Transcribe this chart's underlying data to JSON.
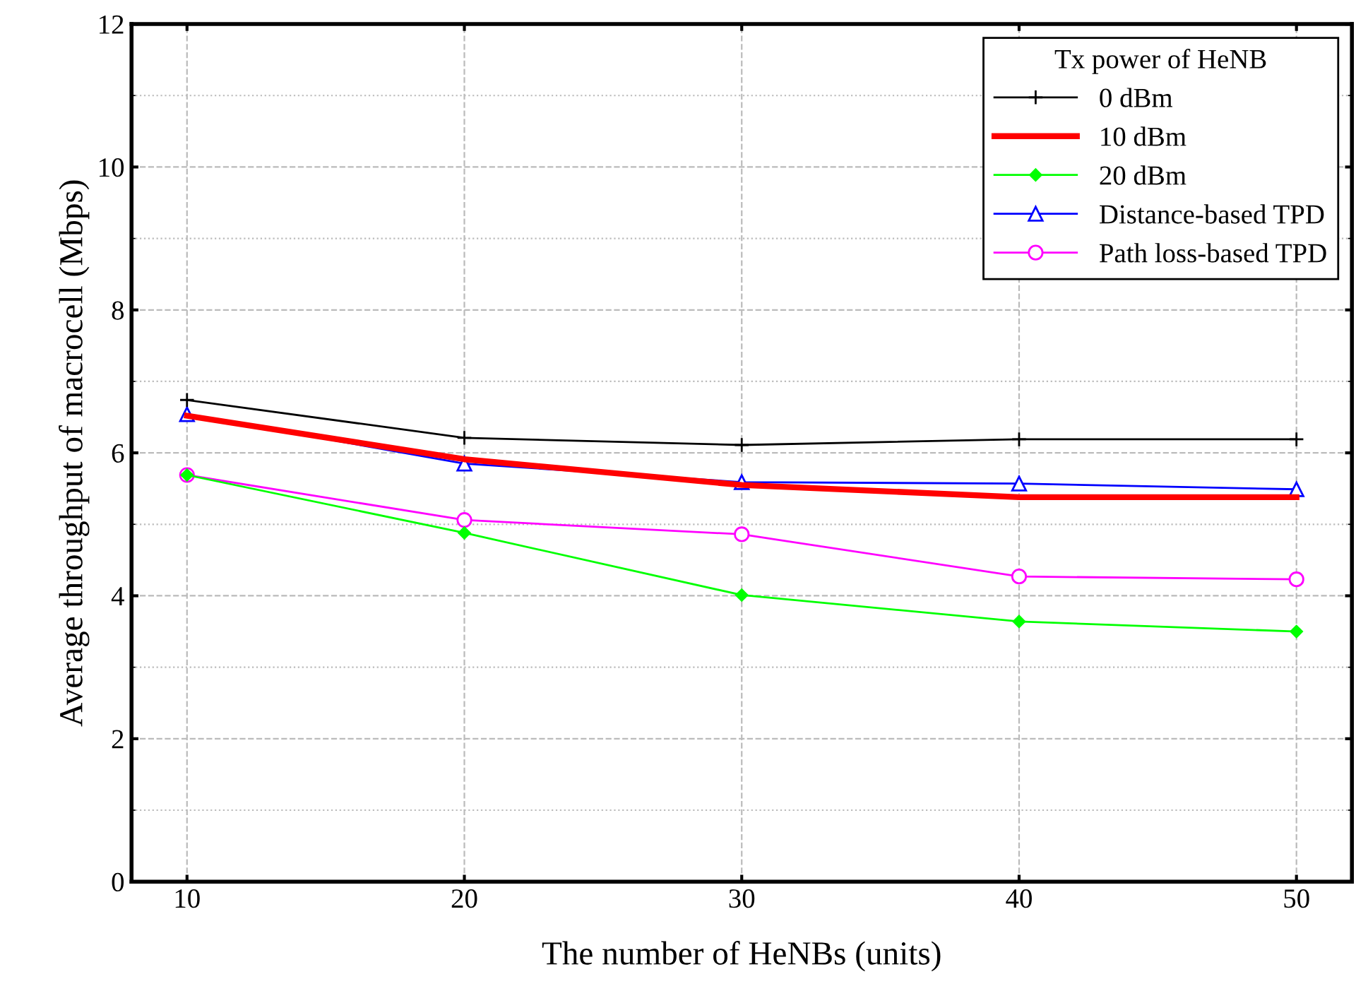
{
  "chart_data": {
    "type": "line",
    "xlabel": "The number of HeNBs (units)",
    "ylabel": "Average throughput of macrocell (Mbps)",
    "legend_title": "Tx power of HeNB",
    "x": [
      10,
      20,
      30,
      40,
      50
    ],
    "series": [
      {
        "name": "0 dBm",
        "color": "#000000",
        "marker": "cross",
        "values": [
          6.74,
          6.21,
          6.11,
          6.19,
          6.19
        ]
      },
      {
        "name": "10 dBm",
        "color": "#ff0000",
        "marker": "none",
        "values": [
          6.52,
          5.91,
          5.55,
          5.38,
          5.38
        ]
      },
      {
        "name": "20 dBm",
        "color": "#00ff00",
        "marker": "diamond",
        "values": [
          5.69,
          4.88,
          4.01,
          3.64,
          3.5
        ]
      },
      {
        "name": "Distance-based TPD",
        "color": "#0000ff",
        "marker": "triangle",
        "values": [
          6.54,
          5.85,
          5.59,
          5.57,
          5.49
        ]
      },
      {
        "name": "Path loss-based TPD",
        "color": "#ff00ff",
        "marker": "circle",
        "values": [
          5.69,
          5.06,
          4.86,
          4.27,
          4.23
        ]
      }
    ],
    "xlim": [
      8,
      52
    ],
    "xticks": [
      10,
      20,
      30,
      40,
      50
    ],
    "ylim": [
      0,
      12
    ],
    "yticks": [
      0,
      2,
      4,
      6,
      8,
      10,
      12
    ],
    "grid": true,
    "legend": "top right",
    "line_style": "solid"
  }
}
